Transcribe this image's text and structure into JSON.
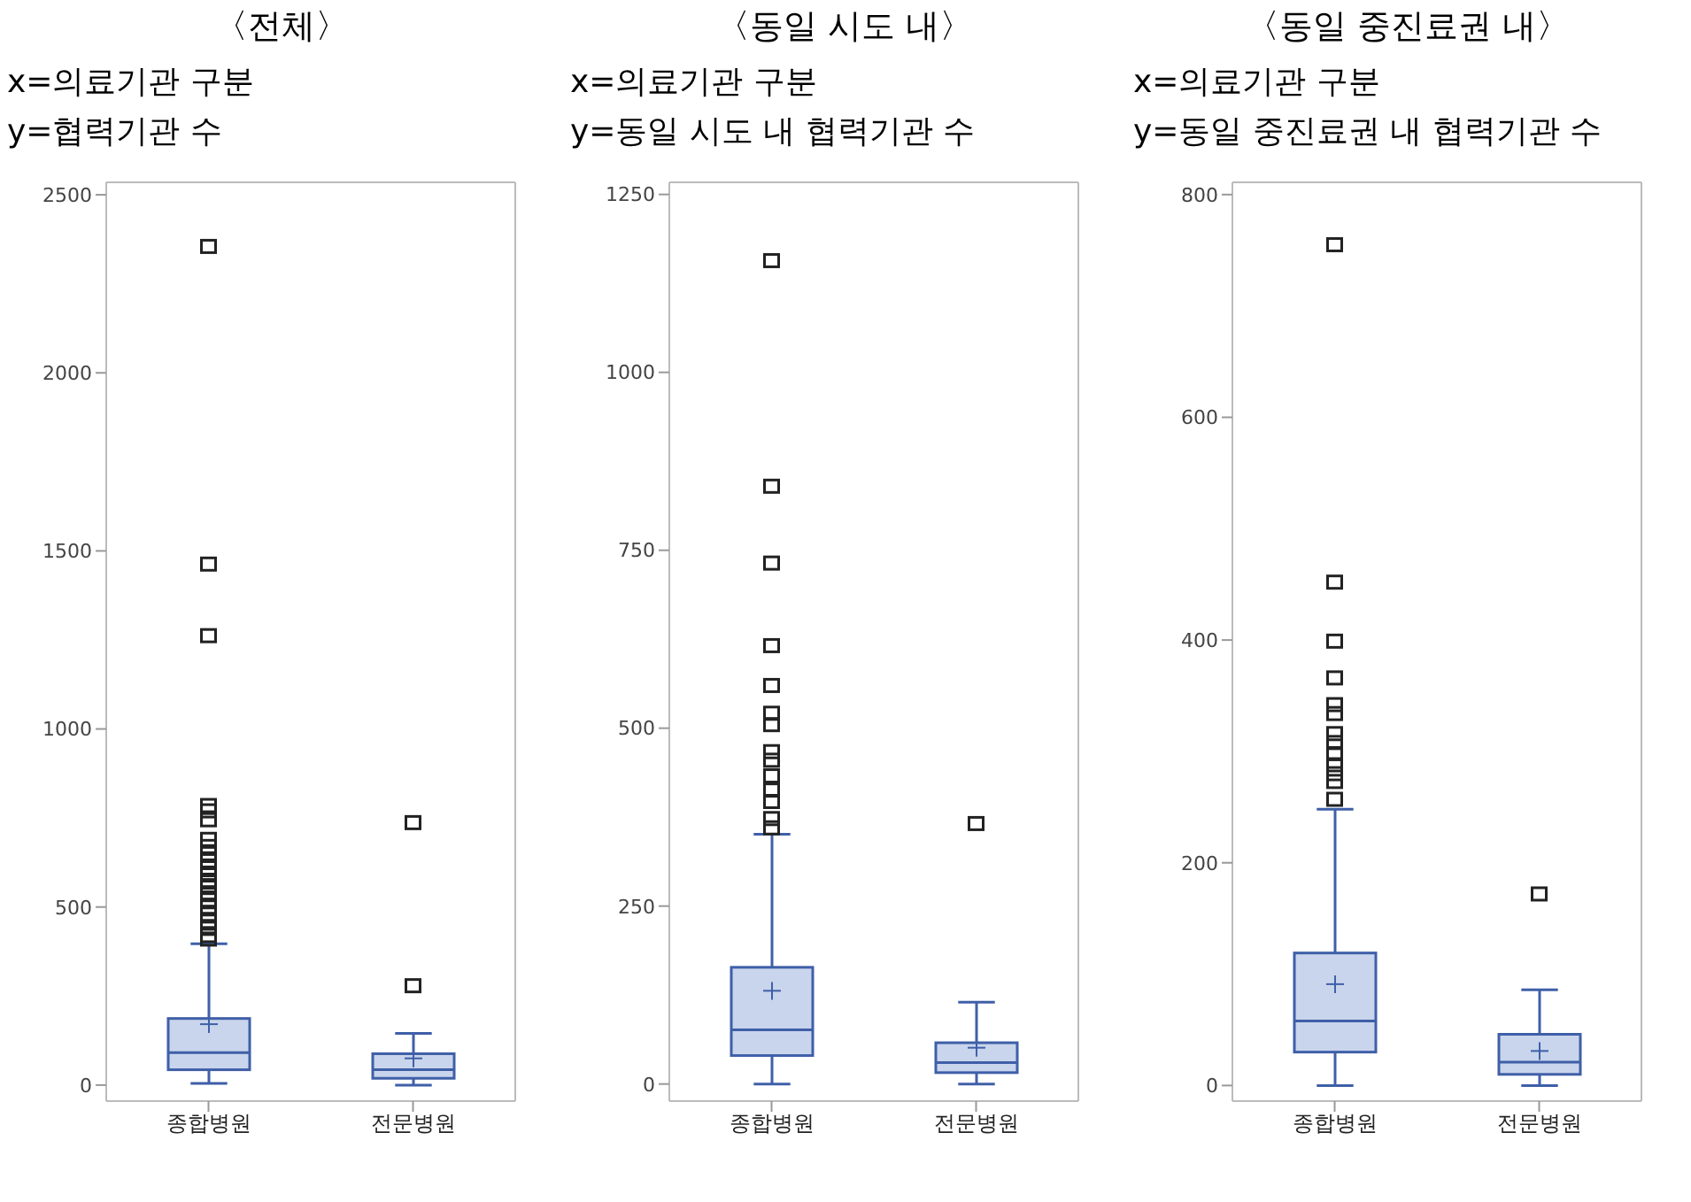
{
  "chart_data": [
    {
      "type": "box",
      "title": "〈전체〉",
      "xlabel": "x=의료기관 구분",
      "ylabel": "y=협력기관 수",
      "categories": [
        "종합병원",
        "전문병원"
      ],
      "color": "#3f5fa8",
      "marker": "square",
      "grid": false,
      "legend": false,
      "ylim": [
        -45,
        2535
      ],
      "yticks": [
        0,
        500,
        1000,
        1500,
        2000,
        2500
      ],
      "boxes": [
        {
          "low": 5,
          "q1": 43,
          "median": 91,
          "q3": 187,
          "high": 397,
          "mean": 171,
          "outliers": [
            410,
            420,
            440,
            460,
            480,
            500,
            520,
            540,
            560,
            570,
            590,
            610,
            630,
            650,
            670,
            690,
            745,
            770,
            785,
            1262,
            1463,
            2355
          ]
        },
        {
          "low": 0,
          "q1": 19,
          "median": 43,
          "q3": 88,
          "high": 145,
          "mean": 75,
          "outliers": [
            279,
            737
          ]
        }
      ]
    },
    {
      "type": "box",
      "title": "〈동일 시도 내〉",
      "xlabel": "x=의료기관 구분",
      "ylabel": "y=동일 시도 내 협력기관 수",
      "categories": [
        "종합병원",
        "전문병원"
      ],
      "color": "#3f5fa8",
      "marker": "square",
      "grid": false,
      "legend": false,
      "ylim": [
        -24,
        1267
      ],
      "yticks": [
        0,
        250,
        500,
        750,
        1000,
        1250
      ],
      "boxes": [
        {
          "low": 0,
          "q1": 40,
          "median": 76,
          "q3": 164,
          "high": 351,
          "mean": 131,
          "outliers": [
            360,
            373,
            397,
            413,
            433,
            455,
            467,
            505,
            521,
            560,
            616,
            732,
            840,
            1157
          ]
        },
        {
          "low": 0,
          "q1": 16,
          "median": 30,
          "q3": 58,
          "high": 115,
          "mean": 51,
          "outliers": [
            366
          ]
        }
      ]
    },
    {
      "type": "box",
      "title": "〈동일 중진료권 내〉",
      "xlabel": "x=의료기관 구분",
      "ylabel": "y=동일 중진료권 내 협력기관 수",
      "categories": [
        "종합병원",
        "전문병원"
      ],
      "color": "#3f5fa8",
      "marker": "square",
      "grid": false,
      "legend": false,
      "ylim": [
        -14,
        811
      ],
      "yticks": [
        0,
        200,
        400,
        600,
        800
      ],
      "boxes": [
        {
          "low": 0,
          "q1": 30,
          "median": 58,
          "q3": 119,
          "high": 248,
          "mean": 91,
          "outliers": [
            257,
            273,
            280,
            288,
            298,
            308,
            316,
            334,
            342,
            366,
            399,
            452,
            755
          ]
        },
        {
          "low": 0,
          "q1": 10,
          "median": 21,
          "q3": 46,
          "high": 86,
          "mean": 31,
          "outliers": [
            172
          ]
        }
      ]
    }
  ]
}
